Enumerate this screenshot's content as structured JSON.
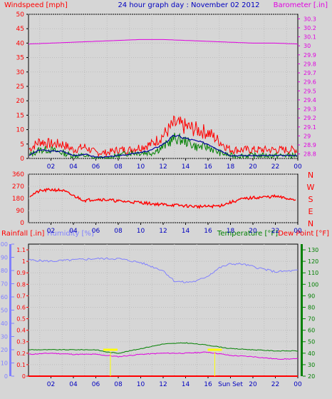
{
  "chart_data": [
    {
      "type": "line",
      "title": "24 hour graph day : November 02 2012",
      "ylabel": "Windspeed [mph]",
      "y2label": "Barometer [.in]",
      "ylim": [
        0,
        50
      ],
      "y2lim": [
        28.75,
        30.35
      ],
      "yticks": [
        "0",
        "5",
        "10",
        "15",
        "20",
        "25",
        "30",
        "35",
        "40",
        "45",
        "50"
      ],
      "y2ticks": [
        "28.8",
        "28.9",
        "29",
        "29.1",
        "29.2",
        "29.3",
        "29.4",
        "29.5",
        "29.6",
        "29.7",
        "29.8",
        "29.9",
        "30",
        "30.1",
        "30.2",
        "30.3"
      ],
      "xticks": [
        "02",
        "04",
        "06",
        "08",
        "10",
        "12",
        "14",
        "16",
        "18",
        "20",
        "22",
        "00"
      ],
      "grid": true,
      "series": [
        {
          "name": "Barometer",
          "axis": "right",
          "color": "#e000e0",
          "x": [
            0,
            2,
            4,
            6,
            8,
            10,
            12,
            14,
            16,
            18,
            20,
            22,
            24
          ],
          "values": [
            30.02,
            30.03,
            30.04,
            30.05,
            30.06,
            30.07,
            30.07,
            30.06,
            30.05,
            30.04,
            30.03,
            30.03,
            30.02
          ]
        },
        {
          "name": "Gust",
          "color": "#ff0000",
          "x": [
            0,
            1,
            2,
            3,
            4,
            5,
            6,
            7,
            8,
            9,
            10,
            11,
            12,
            13,
            14,
            15,
            16,
            17,
            18,
            19,
            20,
            21,
            22,
            23,
            24
          ],
          "values": [
            3,
            6,
            5,
            5,
            3,
            4,
            2,
            2,
            3,
            3,
            4,
            5,
            8,
            12,
            11,
            10,
            9,
            6,
            3,
            3,
            3,
            3,
            3,
            3,
            3
          ]
        },
        {
          "name": "Average",
          "color": "#0000a0",
          "x": [
            0,
            1,
            2,
            3,
            4,
            5,
            6,
            7,
            8,
            9,
            10,
            11,
            12,
            13,
            14,
            15,
            16,
            17,
            18,
            19,
            20,
            21,
            22,
            23,
            24
          ],
          "values": [
            1,
            3,
            2.5,
            2.5,
            1,
            1.5,
            0.5,
            0.5,
            1,
            1.5,
            2,
            3,
            5,
            8,
            7,
            6,
            5,
            3,
            1,
            1,
            1,
            1,
            1,
            1,
            1
          ]
        },
        {
          "name": "Wind",
          "color": "#008000",
          "x": [
            0,
            1,
            2,
            3,
            4,
            5,
            6,
            7,
            8,
            9,
            10,
            11,
            12,
            13,
            14,
            15,
            16,
            17,
            18,
            19,
            20,
            21,
            22,
            23,
            24
          ],
          "values": [
            1,
            3,
            3,
            2,
            1,
            1,
            0,
            0,
            1,
            2,
            2,
            2,
            4,
            7,
            6,
            4,
            4,
            2,
            1,
            1,
            1,
            1,
            1,
            1,
            1
          ]
        }
      ]
    },
    {
      "type": "scatter",
      "ylabel": "Wind direction",
      "ylim": [
        0,
        360
      ],
      "yticks": [
        "0",
        "90",
        "180",
        "270",
        "360"
      ],
      "direction_labels": [
        "N",
        "W",
        "S",
        "E",
        "N"
      ],
      "xticks": [
        "02",
        "04",
        "06",
        "08",
        "10",
        "12",
        "14",
        "16",
        "18",
        "20",
        "22",
        "00"
      ],
      "grid": true,
      "series": [
        {
          "name": "Direction",
          "color": "#ff0000",
          "x": [
            0,
            1,
            2,
            3,
            4,
            5,
            6,
            7,
            8,
            9,
            10,
            11,
            12,
            13,
            14,
            15,
            16,
            17,
            18,
            19,
            20,
            21,
            22,
            23,
            24
          ],
          "values": [
            195,
            235,
            245,
            240,
            200,
            165,
            175,
            170,
            160,
            155,
            150,
            140,
            135,
            130,
            125,
            120,
            120,
            125,
            150,
            175,
            185,
            190,
            195,
            180,
            170
          ]
        }
      ]
    },
    {
      "type": "line",
      "ylabel": "Rainfall [.in]",
      "ylabel2": "Humidity [%]",
      "y2label": "Temperature [°F]",
      "y2label2": "Dew Point [°F]",
      "rain_lim": [
        0,
        1.15
      ],
      "humidity_lim": [
        0,
        100
      ],
      "temp_lim": [
        20,
        135
      ],
      "rain_ticks": [
        "0",
        "0.1",
        "0.2",
        "0.3",
        "0.4",
        "0.5",
        "0.6",
        "0.7",
        "0.8",
        "0.9",
        "1",
        "1.1"
      ],
      "humidity_ticks": [
        "0",
        "10",
        "20",
        "30",
        "40",
        "50",
        "60",
        "70",
        "80",
        "90",
        "100"
      ],
      "temp_ticks": [
        "20",
        "30",
        "40",
        "50",
        "60",
        "70",
        "80",
        "90",
        "100",
        "110",
        "120",
        "130"
      ],
      "xticks": [
        "02",
        "04",
        "06",
        "08",
        "10",
        "12",
        "14",
        "16",
        "Sun Set",
        "20",
        "22",
        "00"
      ],
      "grid": true,
      "series": [
        {
          "name": "Humidity",
          "axis": "humidity",
          "color": "#8080ff",
          "x": [
            0,
            2,
            4,
            6,
            8,
            10,
            12,
            13,
            14,
            15,
            16,
            17,
            18,
            19,
            20,
            22,
            24
          ],
          "values": [
            88,
            87,
            88,
            89,
            89,
            86,
            80,
            72,
            71,
            72,
            76,
            82,
            85,
            85,
            83,
            79,
            80
          ]
        },
        {
          "name": "Temperature",
          "axis": "temp",
          "color": "#008000",
          "x": [
            0,
            2,
            4,
            6,
            7,
            8,
            10,
            12,
            14,
            16,
            18,
            20,
            22,
            24
          ],
          "values": [
            43,
            43,
            43,
            43,
            41,
            40,
            44,
            48,
            49,
            47,
            44,
            43,
            42,
            42
          ]
        },
        {
          "name": "Dew Point",
          "axis": "temp",
          "color": "#e000e0",
          "x": [
            0,
            2,
            4,
            6,
            7,
            8,
            10,
            12,
            14,
            16,
            18,
            20,
            22,
            24
          ],
          "values": [
            39,
            40,
            39,
            39,
            38,
            37,
            39,
            40,
            40,
            41,
            38,
            37,
            35,
            35
          ]
        },
        {
          "name": "Rainfall",
          "axis": "rain",
          "color": "#ff0000",
          "x": [
            0,
            24
          ],
          "values": [
            0,
            0
          ]
        }
      ]
    }
  ]
}
